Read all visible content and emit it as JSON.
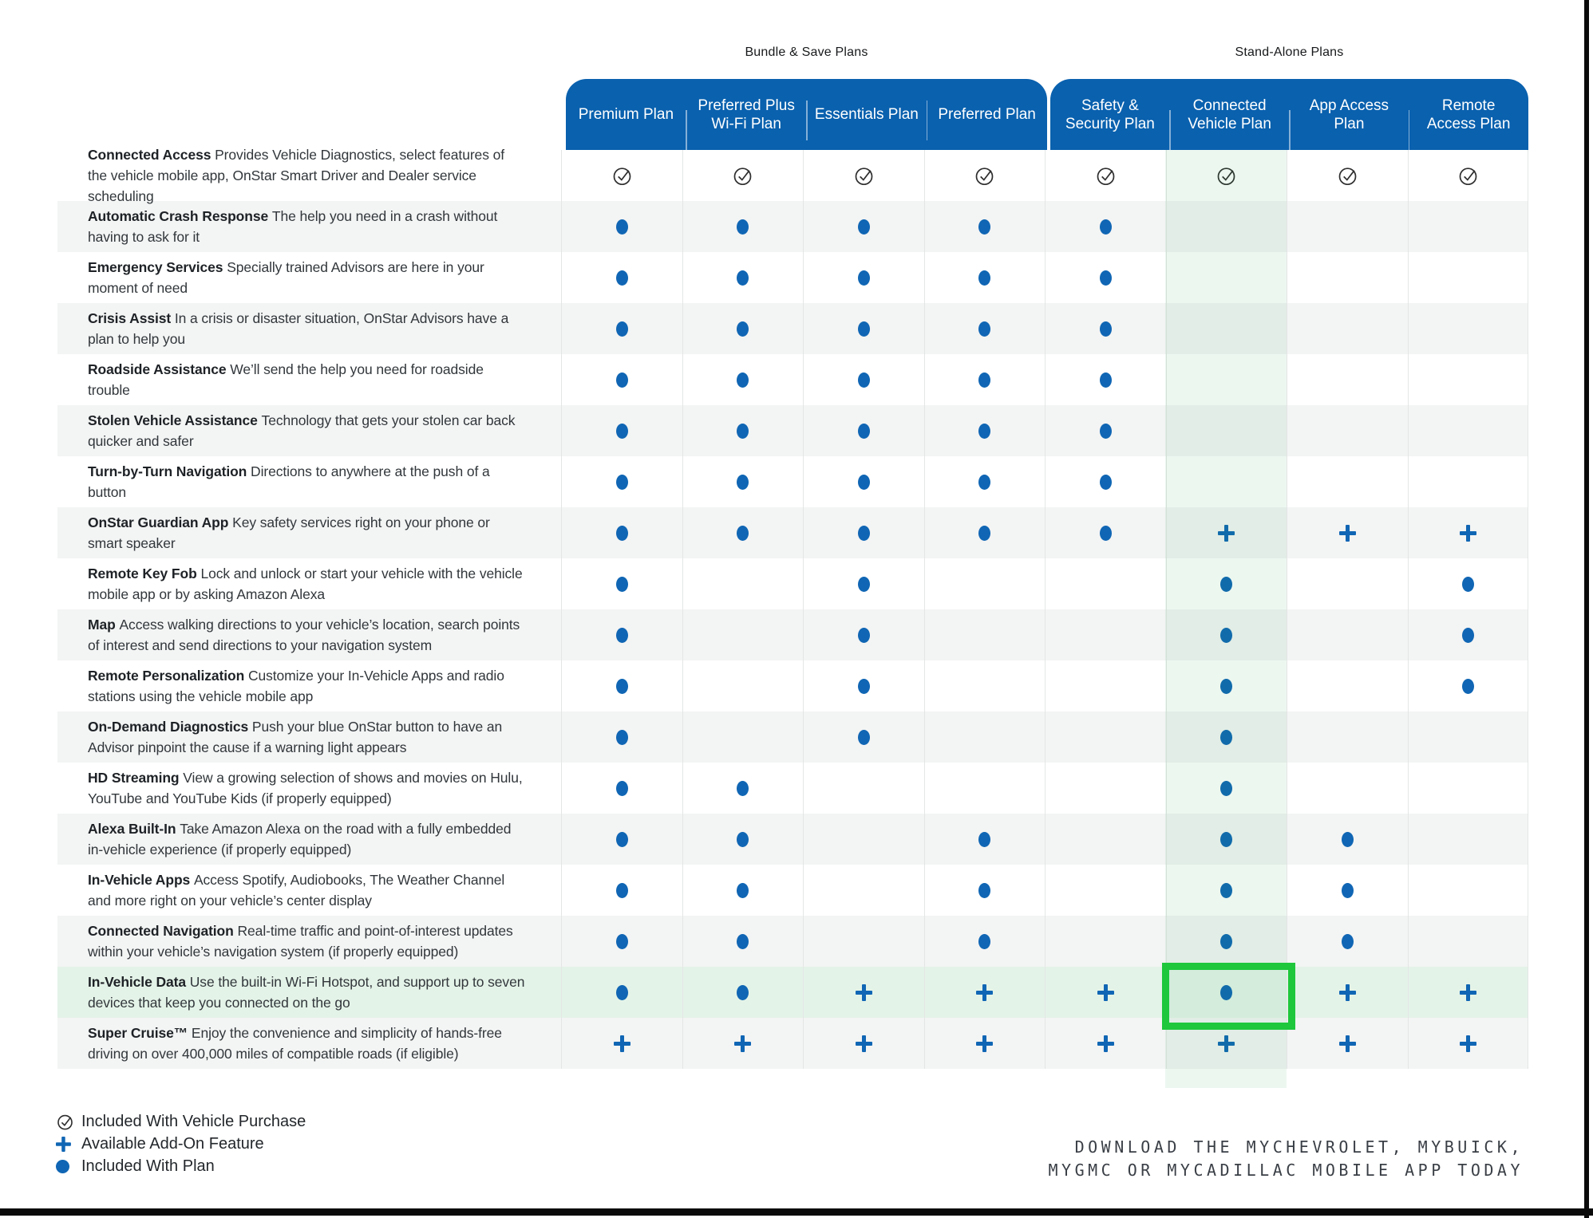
{
  "groups": [
    {
      "title": "Bundle & Save Plans"
    },
    {
      "title": "Stand-Alone Plans"
    }
  ],
  "table": {
    "columns": [
      {
        "label": "Premium Plan",
        "group": "Bundle & Save Plans"
      },
      {
        "label": "Preferred Plus\nWi-Fi Plan",
        "group": "Bundle & Save Plans"
      },
      {
        "label": "Essentials Plan",
        "group": "Bundle & Save Plans"
      },
      {
        "label": "Preferred Plan",
        "group": "Bundle & Save Plans"
      },
      {
        "label": "Safety &\nSecurity Plan",
        "group": "Stand-Alone Plans"
      },
      {
        "label": "Connected\nVehicle Plan",
        "group": "Stand-Alone Plans"
      },
      {
        "label": "App Access\nPlan",
        "group": "Stand-Alone Plans"
      },
      {
        "label": "Remote\nAccess Plan",
        "group": "Stand-Alone Plans"
      }
    ],
    "rows": [
      {
        "name": "Connected Access",
        "description": "Provides Vehicle Diagnostics, select features of the vehicle mobile app, OnStar Smart Driver and Dealer service scheduling",
        "cells": [
          "check",
          "check",
          "check",
          "check",
          "check",
          "check",
          "check",
          "check"
        ]
      },
      {
        "name": "Automatic Crash Response",
        "description": "The help you need in a crash without having to ask for it",
        "cells": [
          "dot",
          "dot",
          "dot",
          "dot",
          "dot",
          "",
          "",
          ""
        ]
      },
      {
        "name": "Emergency Services",
        "description": "Specially trained Advisors are here in your moment of need",
        "cells": [
          "dot",
          "dot",
          "dot",
          "dot",
          "dot",
          "",
          "",
          ""
        ]
      },
      {
        "name": "Crisis Assist",
        "description": "In a crisis or disaster situation, OnStar Advisors have a plan to help you",
        "cells": [
          "dot",
          "dot",
          "dot",
          "dot",
          "dot",
          "",
          "",
          ""
        ]
      },
      {
        "name": "Roadside Assistance",
        "description": "We’ll send the help you need for roadside trouble",
        "cells": [
          "dot",
          "dot",
          "dot",
          "dot",
          "dot",
          "",
          "",
          ""
        ]
      },
      {
        "name": "Stolen Vehicle Assistance",
        "description": "Technology that gets your stolen car back quicker and safer",
        "cells": [
          "dot",
          "dot",
          "dot",
          "dot",
          "dot",
          "",
          "",
          ""
        ]
      },
      {
        "name": "Turn-by-Turn Navigation",
        "description": "Directions to anywhere at the push of a button",
        "cells": [
          "dot",
          "dot",
          "dot",
          "dot",
          "dot",
          "",
          "",
          ""
        ]
      },
      {
        "name": "OnStar Guardian App",
        "description": "Key safety services right on your phone or smart speaker",
        "cells": [
          "dot",
          "dot",
          "dot",
          "dot",
          "dot",
          "plus",
          "plus",
          "plus"
        ]
      },
      {
        "name": "Remote Key Fob",
        "description": "Lock and unlock or start your vehicle with the vehicle mobile app or by asking Amazon Alexa",
        "cells": [
          "dot",
          "",
          "dot",
          "",
          "",
          "dot",
          "",
          "dot"
        ]
      },
      {
        "name": "Map",
        "description": "Access walking directions to your vehicle’s location, search points of interest and send directions to your navigation system",
        "cells": [
          "dot",
          "",
          "dot",
          "",
          "",
          "dot",
          "",
          "dot"
        ]
      },
      {
        "name": "Remote Personalization",
        "description": "Customize your In-Vehicle Apps and radio stations using the vehicle mobile app",
        "cells": [
          "dot",
          "",
          "dot",
          "",
          "",
          "dot",
          "",
          "dot"
        ]
      },
      {
        "name": "On-Demand Diagnostics",
        "description": "Push your blue OnStar button to have an Advisor pinpoint the cause if a warning light appears",
        "cells": [
          "dot",
          "",
          "dot",
          "",
          "",
          "dot",
          "",
          ""
        ]
      },
      {
        "name": "HD Streaming",
        "description": "View a growing selection of shows and movies on Hulu, YouTube and YouTube Kids (if properly equipped)",
        "cells": [
          "dot",
          "dot",
          "",
          "",
          "",
          "dot",
          "",
          ""
        ]
      },
      {
        "name": "Alexa Built-In",
        "description": "Take Amazon Alexa on the road with a fully embedded in-vehicle experience (if properly equipped)",
        "cells": [
          "dot",
          "dot",
          "",
          "dot",
          "",
          "dot",
          "dot",
          ""
        ]
      },
      {
        "name": "In-Vehicle Apps",
        "description": "Access Spotify, Audiobooks, The Weather Channel and more right on your vehicle’s center display",
        "cells": [
          "dot",
          "dot",
          "",
          "dot",
          "",
          "dot",
          "dot",
          ""
        ]
      },
      {
        "name": "Connected Navigation",
        "description": "Real-time traffic and point-of-interest updates within your vehicle’s navigation system (if properly equipped)",
        "cells": [
          "dot",
          "dot",
          "",
          "dot",
          "",
          "dot",
          "dot",
          ""
        ]
      },
      {
        "name": "In-Vehicle Data",
        "description": "Use the built-in Wi-Fi Hotspot, and support up to seven devices that keep you connected on the go",
        "cells": [
          "dot",
          "dot",
          "plus",
          "plus",
          "plus",
          "dot",
          "plus",
          "plus"
        ],
        "highlighted": true
      },
      {
        "name": "Super Cruise™",
        "description": "Enjoy the convenience and simplicity of hands-free driving on over 400,000 miles of compatible roads (if eligible)",
        "cells": [
          "plus",
          "plus",
          "plus",
          "plus",
          "plus",
          "plus",
          "plus",
          "plus"
        ]
      }
    ]
  },
  "highlight": {
    "feature": "In-Vehicle Data",
    "plan": "Connected Vehicle Plan"
  },
  "legend": {
    "items": [
      {
        "icon": "check-circle-icon",
        "label": "Included With Vehicle Purchase"
      },
      {
        "icon": "plus-icon",
        "label": "Available Add-On Feature"
      },
      {
        "icon": "dot-icon",
        "label": "Included With Plan"
      }
    ]
  },
  "footer": {
    "line1": "DOWNLOAD THE MYCHEVROLET, MYBUICK,",
    "line2": "MYGMC OR MYCADILLAC MOBILE APP TODAY"
  },
  "colors": {
    "header_blue": "#0A61AE",
    "icon_blue": "#1066B4",
    "row_alt": "#F3F4F4",
    "highlight_row_bg": "#E4F3E8",
    "highlight_box_green": "#1EC73C"
  }
}
